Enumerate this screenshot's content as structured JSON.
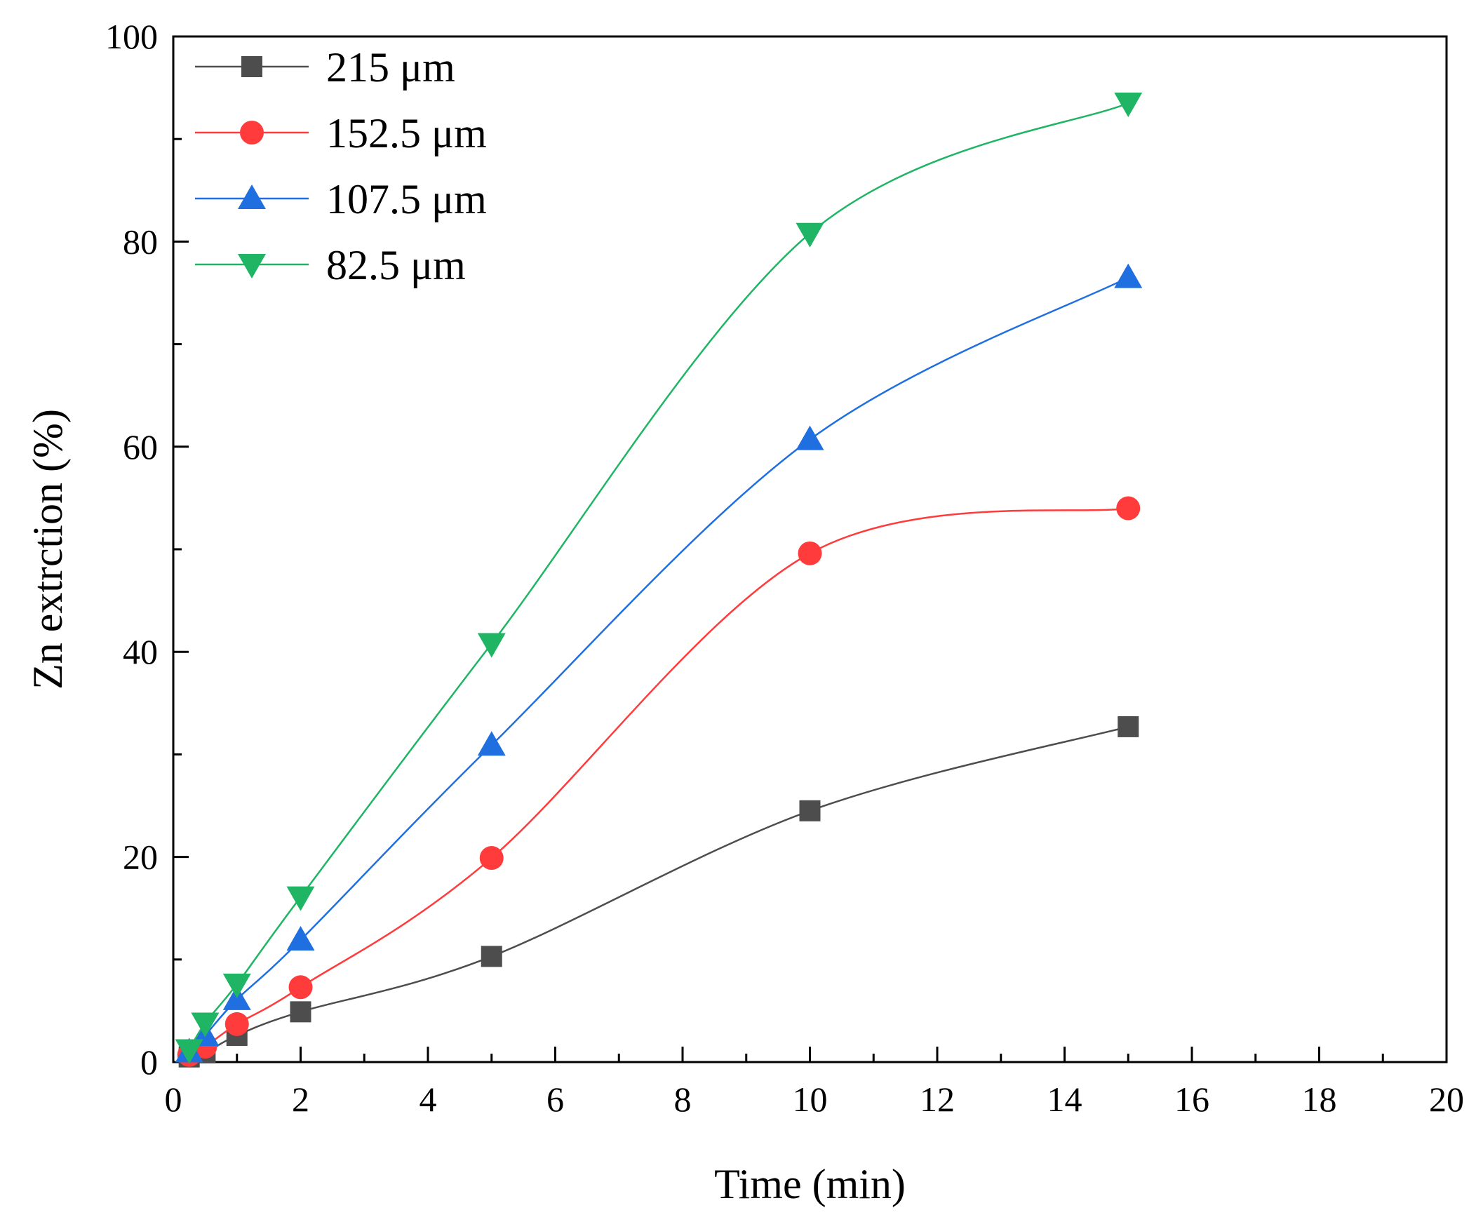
{
  "chart_data": {
    "type": "line",
    "xlabel": "Time (min)",
    "ylabel": "Zn extrction (%)",
    "xlim": [
      0,
      20
    ],
    "ylim": [
      0,
      100
    ],
    "xticks": [
      0,
      2,
      4,
      6,
      8,
      10,
      12,
      14,
      16,
      18,
      20
    ],
    "yticks": [
      0,
      20,
      40,
      60,
      80,
      100
    ],
    "grid": false,
    "legend_position": "top-left",
    "x": [
      0.25,
      0.5,
      1,
      2,
      5,
      10,
      15
    ],
    "series": [
      {
        "name": "215 μm",
        "color": "#4d4d4d",
        "marker": "square",
        "values": [
          0.5,
          0.9,
          2.6,
          4.9,
          10.3,
          24.5,
          32.7
        ]
      },
      {
        "name": "152.5 μm",
        "color": "#ff3b3b",
        "marker": "circle",
        "values": [
          0.7,
          1.5,
          3.7,
          7.3,
          19.9,
          49.6,
          54.0
        ]
      },
      {
        "name": "107.5 μm",
        "color": "#1f6fe0",
        "marker": "triangle-up",
        "values": [
          1.0,
          2.6,
          6.1,
          11.9,
          30.9,
          60.7,
          76.5
        ]
      },
      {
        "name": "82.5 μm",
        "color": "#1fb564",
        "marker": "triangle-down",
        "values": [
          1.2,
          3.8,
          7.6,
          16.1,
          40.8,
          80.8,
          93.5
        ]
      }
    ]
  }
}
